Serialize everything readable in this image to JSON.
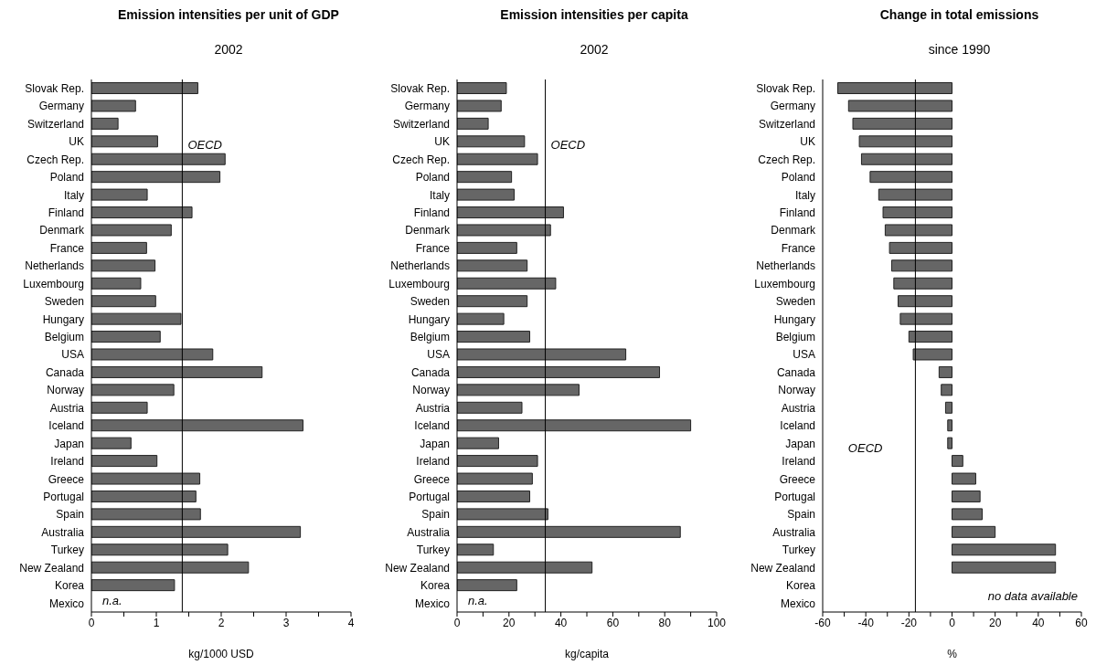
{
  "chart_data": [
    {
      "type": "bar",
      "orientation": "horizontal",
      "title": "Emission intensities per unit of GDP",
      "subtitle": "2002",
      "xlabel": "kg/1000 USD",
      "categories": [
        "Slovak Rep.",
        "Germany",
        "Switzerland",
        "UK",
        "Czech Rep.",
        "Poland",
        "Italy",
        "Finland",
        "Denmark",
        "France",
        "Netherlands",
        "Luxembourg",
        "Sweden",
        "Hungary",
        "Belgium",
        "USA",
        "Canada",
        "Norway",
        "Austria",
        "Iceland",
        "Japan",
        "Ireland",
        "Greece",
        "Portugal",
        "Spain",
        "Australia",
        "Turkey",
        "New Zealand",
        "Korea",
        "Mexico"
      ],
      "values": [
        1.64,
        0.68,
        0.41,
        1.02,
        2.06,
        1.98,
        0.86,
        1.55,
        1.23,
        0.85,
        0.98,
        0.76,
        0.99,
        1.38,
        1.06,
        1.87,
        2.63,
        1.27,
        0.86,
        3.26,
        0.61,
        1.01,
        1.67,
        1.61,
        1.68,
        3.22,
        2.1,
        2.42,
        1.28,
        null
      ],
      "color": "#666666",
      "xlim": [
        0,
        4
      ],
      "xticks": [
        0,
        {
          "value": 0.5,
          "label": null
        },
        1,
        {
          "value": 1.5,
          "label": null
        },
        2,
        {
          "value": 2.5,
          "label": null
        },
        3,
        {
          "value": 3.5,
          "label": null
        },
        4
      ],
      "ref_lines": [
        {
          "axis": "x",
          "value": 1.4,
          "label": "OECD"
        }
      ],
      "annotations": [
        "n.a."
      ]
    },
    {
      "type": "bar",
      "orientation": "horizontal",
      "title": "Emission intensities per capita",
      "subtitle": "2002",
      "xlabel": "kg/capita",
      "categories": [
        "Slovak Rep.",
        "Germany",
        "Switzerland",
        "UK",
        "Czech Rep.",
        "Poland",
        "Italy",
        "Finland",
        "Denmark",
        "France",
        "Netherlands",
        "Luxembourg",
        "Sweden",
        "Hungary",
        "Belgium",
        "USA",
        "Canada",
        "Norway",
        "Austria",
        "Iceland",
        "Japan",
        "Ireland",
        "Greece",
        "Portugal",
        "Spain",
        "Australia",
        "Turkey",
        "New Zealand",
        "Korea",
        "Mexico"
      ],
      "values": [
        19,
        17,
        12,
        26,
        31,
        21,
        22,
        41,
        36,
        23,
        27,
        38,
        27,
        18,
        28,
        65,
        78,
        47,
        25,
        90,
        16,
        31,
        29,
        28,
        35,
        86,
        14,
        52,
        23,
        null
      ],
      "color": "#666666",
      "xlim": [
        0,
        100
      ],
      "xticks": [
        0,
        {
          "value": 10,
          "label": null
        },
        20,
        {
          "value": 30,
          "label": null
        },
        40,
        {
          "value": 50,
          "label": null
        },
        60,
        {
          "value": 70,
          "label": null
        },
        80,
        {
          "value": 90,
          "label": null
        },
        100
      ],
      "ref_lines": [
        {
          "axis": "x",
          "value": 34,
          "label": "OECD"
        }
      ],
      "annotations": [
        "n.a."
      ]
    },
    {
      "type": "bar",
      "orientation": "horizontal",
      "title": "Change in total emissions",
      "subtitle": "since 1990",
      "xlabel": "%",
      "categories": [
        "Slovak Rep.",
        "Germany",
        "Switzerland",
        "UK",
        "Czech Rep.",
        "Poland",
        "Italy",
        "Finland",
        "Denmark",
        "France",
        "Netherlands",
        "Luxembourg",
        "Sweden",
        "Hungary",
        "Belgium",
        "USA",
        "Canada",
        "Norway",
        "Austria",
        "Iceland",
        "Japan",
        "Ireland",
        "Greece",
        "Portugal",
        "Spain",
        "Australia",
        "Turkey",
        "New Zealand",
        "Korea",
        "Mexico"
      ],
      "values": [
        -53,
        -48,
        -46,
        -43,
        -42,
        -38,
        -34,
        -32,
        -31,
        -29,
        -28,
        -27,
        -25,
        -24,
        -20,
        -18,
        -6,
        -5,
        -3,
        -2,
        -2,
        5,
        11,
        13,
        14,
        20,
        48,
        48,
        null,
        null
      ],
      "color": "#666666",
      "xlim": [
        -60,
        60
      ],
      "xticks": [
        -60,
        {
          "value": -50,
          "label": null
        },
        -40,
        {
          "value": -30,
          "label": null
        },
        -20,
        {
          "value": -10,
          "label": null
        },
        0,
        {
          "value": 10,
          "label": null
        },
        20,
        {
          "value": 30,
          "label": null
        },
        40,
        {
          "value": 50,
          "label": null
        },
        60
      ],
      "ref_lines": [
        {
          "axis": "x",
          "value": -17,
          "label": "OECD"
        }
      ],
      "annotations": [
        "no data available"
      ]
    }
  ]
}
